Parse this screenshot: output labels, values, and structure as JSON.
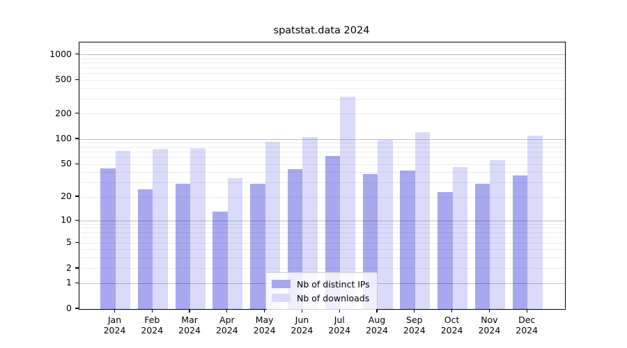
{
  "title": "spatstat.data 2024",
  "colors": {
    "bar_distinct_ips": "#a8a8f0",
    "bar_downloads": "#dadafa",
    "grid_major": "#bdbdbd",
    "grid_minor": "#ebebeb",
    "axis": "#000000",
    "legend_border": "#cccccc"
  },
  "chart_data": {
    "type": "bar",
    "title": "spatstat.data 2024",
    "categories": [
      "Jan 2024",
      "Feb 2024",
      "Mar 2024",
      "Apr 2024",
      "May 2024",
      "Jun 2024",
      "Jul 2024",
      "Aug 2024",
      "Sep 2024",
      "Oct 2024",
      "Nov 2024",
      "Dec 2024"
    ],
    "series": [
      {
        "name": "Nb of distinct IPs",
        "color": "#a8a8f0",
        "values": [
          45,
          25,
          29,
          13,
          29,
          44,
          63,
          38,
          42,
          23,
          29,
          37
        ]
      },
      {
        "name": "Nb of downloads",
        "color": "#dadafa",
        "values": [
          72,
          76,
          78,
          34,
          92,
          105,
          320,
          98,
          120,
          46,
          56,
          110
        ]
      }
    ],
    "xlabel": "",
    "ylabel": "",
    "yscale": "log1p",
    "yticks": [
      0,
      1,
      2,
      5,
      10,
      20,
      50,
      100,
      200,
      500,
      1000
    ],
    "grid_major_values": [
      1,
      10,
      100,
      1000
    ],
    "ylim": [
      0,
      1400
    ],
    "grid": "on",
    "grid_on_top_of_bars": true,
    "legend_position": "lower center"
  }
}
